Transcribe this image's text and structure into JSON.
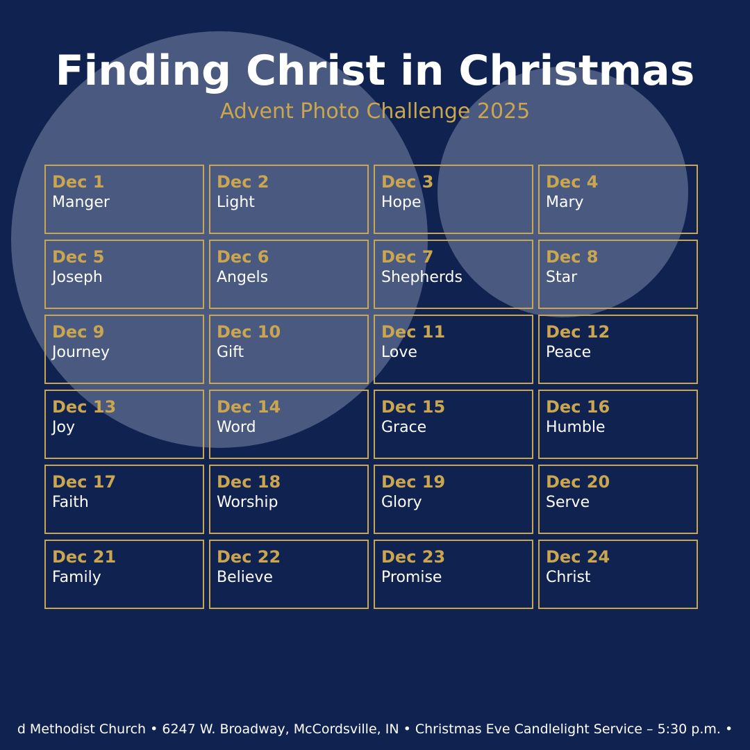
{
  "header": {
    "title": "Finding Christ in Christmas",
    "subtitle": "Advent Photo Challenge 2025"
  },
  "calendar": {
    "days": [
      {
        "date": "Dec 1",
        "theme": "Manger"
      },
      {
        "date": "Dec 2",
        "theme": "Light"
      },
      {
        "date": "Dec 3",
        "theme": "Hope"
      },
      {
        "date": "Dec 4",
        "theme": "Mary"
      },
      {
        "date": "Dec 5",
        "theme": "Joseph"
      },
      {
        "date": "Dec 6",
        "theme": "Angels"
      },
      {
        "date": "Dec 7",
        "theme": "Shepherds"
      },
      {
        "date": "Dec 8",
        "theme": "Star"
      },
      {
        "date": "Dec 9",
        "theme": "Journey"
      },
      {
        "date": "Dec 10",
        "theme": "Gift"
      },
      {
        "date": "Dec 11",
        "theme": "Love"
      },
      {
        "date": "Dec 12",
        "theme": "Peace"
      },
      {
        "date": "Dec 13",
        "theme": "Joy"
      },
      {
        "date": "Dec 14",
        "theme": "Word"
      },
      {
        "date": "Dec 15",
        "theme": "Grace"
      },
      {
        "date": "Dec 16",
        "theme": "Humble"
      },
      {
        "date": "Dec 17",
        "theme": "Faith"
      },
      {
        "date": "Dec 18",
        "theme": "Worship"
      },
      {
        "date": "Dec 19",
        "theme": "Glory"
      },
      {
        "date": "Dec 20",
        "theme": "Serve"
      },
      {
        "date": "Dec 21",
        "theme": "Family"
      },
      {
        "date": "Dec 22",
        "theme": "Believe"
      },
      {
        "date": "Dec 23",
        "theme": "Promise"
      },
      {
        "date": "Dec 24",
        "theme": "Christ"
      }
    ]
  },
  "footer": {
    "text": "d Methodist Church • 6247 W. Broadway, McCordsville, IN • Christmas Eve Candlelight Service – 5:30 p.m. •"
  },
  "colors": {
    "background": "#10224f",
    "accent_gold": "#c9a64f",
    "text_white": "#ffffff"
  }
}
